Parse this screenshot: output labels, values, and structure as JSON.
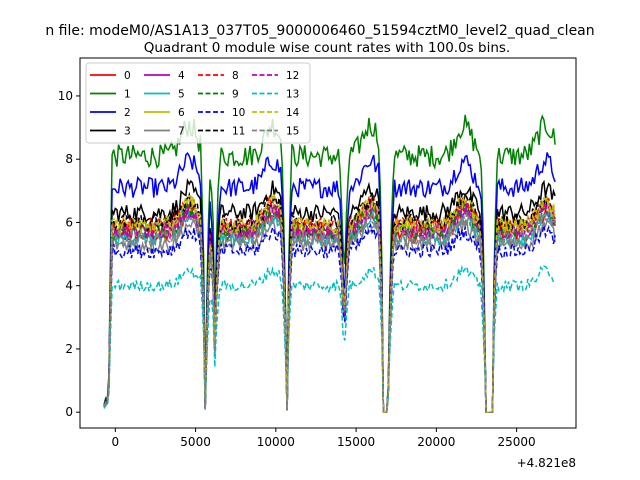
{
  "chart_data": {
    "type": "line",
    "suptitle": "n file: modeM0/AS1A13_037T05_9000006460_51594cztM0_level2_quad_clean",
    "title": "Quadrant 0 module wise count rates with 100.0s bins.",
    "x_offset_label": "+4.821e8",
    "xlabel": "",
    "ylabel": "",
    "xlim": [
      -2200,
      28700
    ],
    "ylim": [
      -0.5,
      11.2
    ],
    "x_ticks": [
      0,
      5000,
      10000,
      15000,
      20000,
      25000
    ],
    "x_tick_labels": [
      "0",
      "5000",
      "10000",
      "15000",
      "20000",
      "25000"
    ],
    "y_ticks": [
      0,
      2,
      4,
      6,
      8,
      10
    ],
    "y_tick_labels": [
      "0",
      "2",
      "4",
      "6",
      "8",
      "10"
    ],
    "x_start": -700,
    "x_end": 27400,
    "x_step": 100,
    "gaps": [
      {
        "start": 5600,
        "end": 5650,
        "depth": 0.02
      },
      {
        "start": 6200,
        "end": 6230,
        "depth": 0.35
      },
      {
        "start": 10650,
        "end": 10700,
        "depth": 0.01
      },
      {
        "start": 14250,
        "end": 14270,
        "depth": 0.35
      },
      {
        "start": 16700,
        "end": 16900,
        "depth": 0.0
      },
      {
        "start": 17000,
        "end": 17050,
        "depth": 0.1
      },
      {
        "start": 23050,
        "end": 23500,
        "depth": 0.0
      }
    ],
    "legend": {
      "position": "upper-left",
      "columns": 4
    },
    "series": [
      {
        "name": "0",
        "color": "#ff0000",
        "dash": "solid",
        "base": 5.6
      },
      {
        "name": "1",
        "color": "#008000",
        "dash": "solid",
        "base": 8.1
      },
      {
        "name": "2",
        "color": "#0000ff",
        "dash": "solid",
        "base": 7.1
      },
      {
        "name": "3",
        "color": "#000000",
        "dash": "solid",
        "base": 6.3
      },
      {
        "name": "4",
        "color": "#bf00bf",
        "dash": "solid",
        "base": 5.8
      },
      {
        "name": "5",
        "color": "#00bfbf",
        "dash": "solid",
        "base": 5.5
      },
      {
        "name": "6",
        "color": "#bfbf00",
        "dash": "solid",
        "base": 5.9
      },
      {
        "name": "7",
        "color": "#808080",
        "dash": "solid",
        "base": 5.3
      },
      {
        "name": "8",
        "color": "#ff0000",
        "dash": "dashed",
        "base": 5.9
      },
      {
        "name": "9",
        "color": "#008000",
        "dash": "dashed",
        "base": 5.7
      },
      {
        "name": "10",
        "color": "#0000ff",
        "dash": "dashed",
        "base": 5.1
      },
      {
        "name": "11",
        "color": "#000000",
        "dash": "dashed",
        "base": 6.0
      },
      {
        "name": "12",
        "color": "#bf00bf",
        "dash": "dashed",
        "base": 5.7
      },
      {
        "name": "13",
        "color": "#00bfbf",
        "dash": "dashed",
        "base": 4.0
      },
      {
        "name": "14",
        "color": "#bfbf00",
        "dash": "dashed",
        "base": 5.9
      },
      {
        "name": "15",
        "color": "#808080",
        "dash": "dashed",
        "base": 5.5
      }
    ]
  }
}
